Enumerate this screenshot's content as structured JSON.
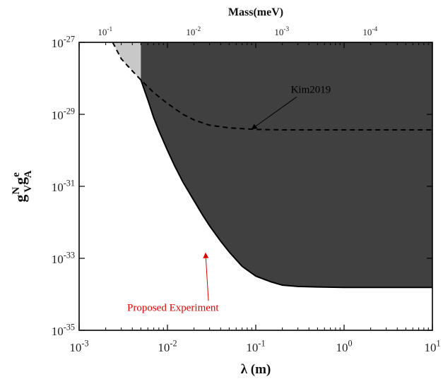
{
  "chart_data": {
    "type": "area",
    "x_scale": "log",
    "y_scale": "log",
    "xlim": [
      0.001,
      10
    ],
    "ylim": [
      1e-35,
      1e-27
    ],
    "xlabel": "λ (m)",
    "ylabel": "g_V^N g_A^e",
    "top_axis_label": "Mass(meV)",
    "x_ticks": [
      {
        "value": 0.001,
        "base": "10",
        "exp": "-3"
      },
      {
        "value": 0.01,
        "base": "10",
        "exp": "-2"
      },
      {
        "value": 0.1,
        "base": "10",
        "exp": "-1"
      },
      {
        "value": 1,
        "base": "10",
        "exp": "0"
      },
      {
        "value": 10,
        "base": "10",
        "exp": "1"
      }
    ],
    "y_ticks": [
      {
        "value": 1e-27,
        "base": "10",
        "exp": "-27"
      },
      {
        "value": 1e-29,
        "base": "10",
        "exp": "-29"
      },
      {
        "value": 1e-31,
        "base": "10",
        "exp": "-31"
      },
      {
        "value": 1e-33,
        "base": "10",
        "exp": "-33"
      },
      {
        "value": 1e-35,
        "base": "10",
        "exp": "-35"
      }
    ],
    "top_ticks": [
      {
        "lambda_m": 0.00197,
        "base": "10",
        "exp": "-1"
      },
      {
        "lambda_m": 0.0197,
        "base": "10",
        "exp": "-2"
      },
      {
        "lambda_m": 0.197,
        "base": "10",
        "exp": "-3"
      },
      {
        "lambda_m": 1.97,
        "base": "10",
        "exp": "-4"
      }
    ],
    "series": [
      {
        "name": "Kim2019",
        "style": "dashed",
        "fill": "#c8c8c8",
        "x": [
          0.0024,
          0.003,
          0.004,
          0.005,
          0.007,
          0.01,
          0.015,
          0.02,
          0.03,
          0.05,
          0.07,
          0.1,
          0.2,
          0.5,
          1,
          3,
          10
        ],
        "y": [
          1e-27,
          3.5e-28,
          1.6e-28,
          9e-29,
          4e-29,
          2e-29,
          1e-29,
          7e-30,
          5e-30,
          4.2e-30,
          4e-30,
          3.8e-30,
          3.7e-30,
          3.7e-30,
          3.7e-30,
          3.7e-30,
          3.7e-30
        ]
      },
      {
        "name": "Proposed Experiment",
        "style": "solid",
        "fill": "#404040",
        "x": [
          0.005,
          0.006,
          0.007,
          0.008,
          0.01,
          0.012,
          0.015,
          0.02,
          0.025,
          0.03,
          0.04,
          0.05,
          0.07,
          0.1,
          0.15,
          0.2,
          0.3,
          0.5,
          1,
          3,
          10
        ],
        "y": [
          9e-29,
          2.5e-29,
          8e-30,
          3.5e-30,
          1e-30,
          3.8e-31,
          1.3e-31,
          4e-32,
          1.6e-32,
          8e-33,
          3e-33,
          1.5e-33,
          6e-34,
          3.2e-34,
          2.2e-34,
          1.8e-34,
          1.65e-34,
          1.6e-34,
          1.55e-34,
          1.55e-34,
          1.55e-34
        ]
      }
    ],
    "annotations": [
      {
        "text": "Kim2019",
        "color": "#000000",
        "text_at": [
          0.42,
          4e-29
        ],
        "arrow_to": [
          0.09,
          3.9e-30
        ]
      },
      {
        "text": "Proposed Experiment",
        "color": "#e00000",
        "text_at": [
          0.0035,
          3.5e-35
        ],
        "arrow_to": [
          0.027,
          1.4e-33
        ]
      }
    ]
  }
}
